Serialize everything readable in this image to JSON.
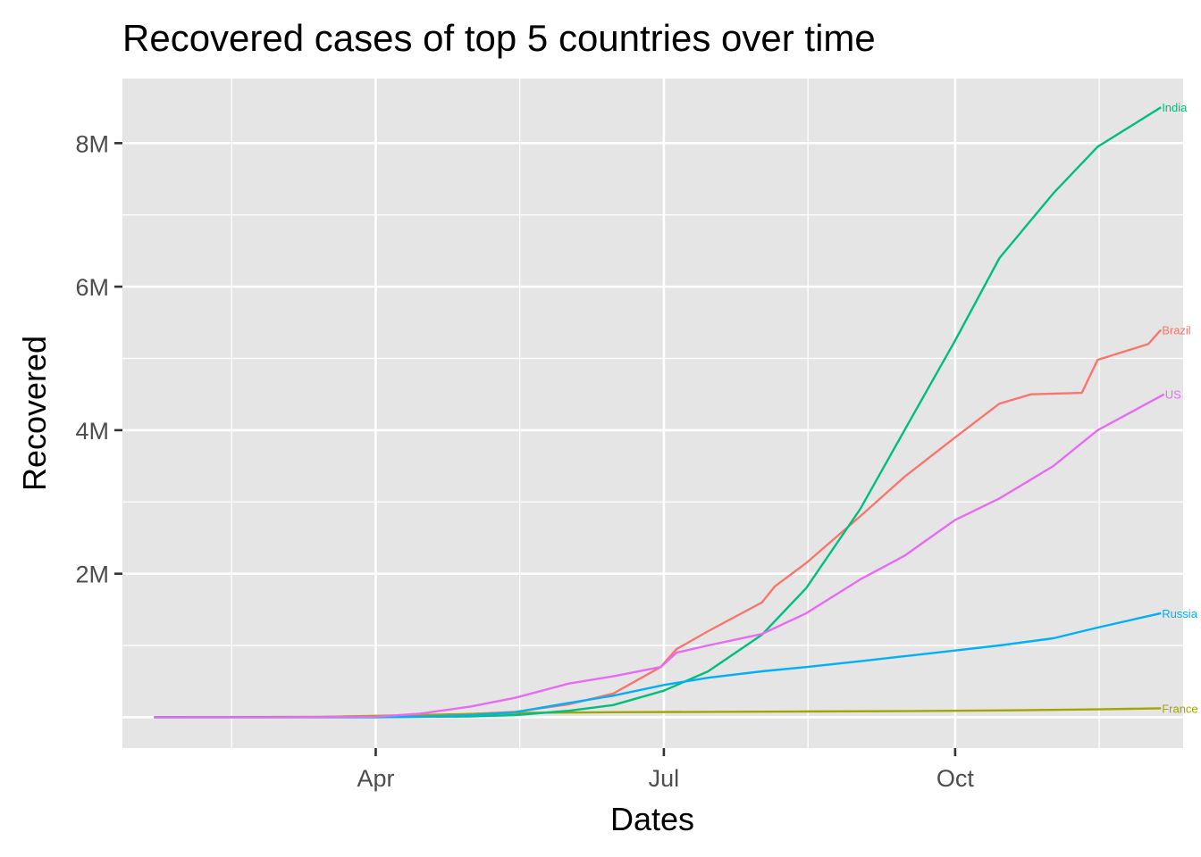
{
  "chart_data": {
    "type": "line",
    "title": "Recovered cases of top 5 countries over time",
    "xlabel": "Dates",
    "ylabel": "Recovered",
    "x_ticks": [
      {
        "date": "2020-04-01",
        "label": "Apr"
      },
      {
        "date": "2020-07-01",
        "label": "Jul"
      },
      {
        "date": "2020-10-01",
        "label": "Oct"
      }
    ],
    "y_ticks": [
      {
        "value": 2000000,
        "label": "2M"
      },
      {
        "value": 4000000,
        "label": "4M"
      },
      {
        "value": 6000000,
        "label": "6M"
      },
      {
        "value": 8000000,
        "label": "8M"
      }
    ],
    "xlim": [
      "2020-01-12",
      "2020-12-12"
    ],
    "ylim": [
      -430000,
      8900000
    ],
    "grid": true,
    "background": "#e5e5e5",
    "series": [
      {
        "name": "Brazil",
        "color": "#f8766d",
        "points": [
          [
            "2020-01-22",
            0
          ],
          [
            "2020-02-15",
            0
          ],
          [
            "2020-03-01",
            0
          ],
          [
            "2020-04-01",
            2000
          ],
          [
            "2020-04-15",
            20000
          ],
          [
            "2020-05-01",
            45000
          ],
          [
            "2020-05-15",
            75000
          ],
          [
            "2020-06-01",
            180000
          ],
          [
            "2020-06-15",
            330000
          ],
          [
            "2020-06-30",
            700000
          ],
          [
            "2020-07-05",
            950000
          ],
          [
            "2020-07-15",
            1200000
          ],
          [
            "2020-08-01",
            1600000
          ],
          [
            "2020-08-05",
            1820000
          ],
          [
            "2020-08-15",
            2150000
          ],
          [
            "2020-09-01",
            2800000
          ],
          [
            "2020-09-15",
            3350000
          ],
          [
            "2020-10-01",
            3900000
          ],
          [
            "2020-10-15",
            4370000
          ],
          [
            "2020-10-25",
            4500000
          ],
          [
            "2020-11-10",
            4520000
          ],
          [
            "2020-11-15",
            4980000
          ],
          [
            "2020-12-01",
            5200000
          ],
          [
            "2020-12-05",
            5400000
          ]
        ]
      },
      {
        "name": "France",
        "color": "#a3a500",
        "points": [
          [
            "2020-01-22",
            0
          ],
          [
            "2020-03-15",
            5000
          ],
          [
            "2020-04-15",
            30000
          ],
          [
            "2020-05-15",
            60000
          ],
          [
            "2020-06-15",
            70000
          ],
          [
            "2020-07-15",
            75000
          ],
          [
            "2020-08-15",
            80000
          ],
          [
            "2020-09-15",
            85000
          ],
          [
            "2020-10-15",
            95000
          ],
          [
            "2020-11-15",
            110000
          ],
          [
            "2020-12-05",
            125000
          ]
        ]
      },
      {
        "name": "India",
        "color": "#00bf7d",
        "points": [
          [
            "2020-01-22",
            0
          ],
          [
            "2020-04-01",
            200
          ],
          [
            "2020-05-01",
            10000
          ],
          [
            "2020-05-15",
            30000
          ],
          [
            "2020-06-01",
            90000
          ],
          [
            "2020-06-15",
            170000
          ],
          [
            "2020-07-01",
            370000
          ],
          [
            "2020-07-15",
            640000
          ],
          [
            "2020-08-01",
            1150000
          ],
          [
            "2020-08-15",
            1800000
          ],
          [
            "2020-09-01",
            2900000
          ],
          [
            "2020-09-15",
            4000000
          ],
          [
            "2020-10-01",
            5250000
          ],
          [
            "2020-10-15",
            6400000
          ],
          [
            "2020-11-01",
            7300000
          ],
          [
            "2020-11-15",
            7950000
          ],
          [
            "2020-12-05",
            8500000
          ]
        ]
      },
      {
        "name": "Russia",
        "color": "#00b0f6",
        "points": [
          [
            "2020-01-22",
            0
          ],
          [
            "2020-04-01",
            300
          ],
          [
            "2020-04-15",
            8000
          ],
          [
            "2020-05-01",
            28000
          ],
          [
            "2020-05-15",
            70000
          ],
          [
            "2020-06-01",
            200000
          ],
          [
            "2020-06-15",
            300000
          ],
          [
            "2020-07-01",
            450000
          ],
          [
            "2020-07-15",
            550000
          ],
          [
            "2020-08-01",
            640000
          ],
          [
            "2020-08-15",
            700000
          ],
          [
            "2020-09-01",
            780000
          ],
          [
            "2020-09-15",
            850000
          ],
          [
            "2020-10-01",
            930000
          ],
          [
            "2020-10-15",
            1000000
          ],
          [
            "2020-11-01",
            1100000
          ],
          [
            "2020-11-15",
            1250000
          ],
          [
            "2020-12-05",
            1450000
          ]
        ]
      },
      {
        "name": "US",
        "color": "#e76bf3",
        "points": [
          [
            "2020-01-22",
            0
          ],
          [
            "2020-03-01",
            5
          ],
          [
            "2020-04-01",
            8000
          ],
          [
            "2020-04-15",
            50000
          ],
          [
            "2020-05-01",
            150000
          ],
          [
            "2020-05-15",
            270000
          ],
          [
            "2020-06-01",
            470000
          ],
          [
            "2020-06-15",
            570000
          ],
          [
            "2020-06-30",
            700000
          ],
          [
            "2020-07-05",
            900000
          ],
          [
            "2020-07-15",
            1000000
          ],
          [
            "2020-08-01",
            1160000
          ],
          [
            "2020-08-15",
            1450000
          ],
          [
            "2020-09-01",
            1920000
          ],
          [
            "2020-09-15",
            2250000
          ],
          [
            "2020-10-01",
            2750000
          ],
          [
            "2020-10-15",
            3050000
          ],
          [
            "2020-11-01",
            3500000
          ],
          [
            "2020-11-15",
            4000000
          ],
          [
            "2020-12-06",
            4500000
          ]
        ]
      }
    ]
  }
}
